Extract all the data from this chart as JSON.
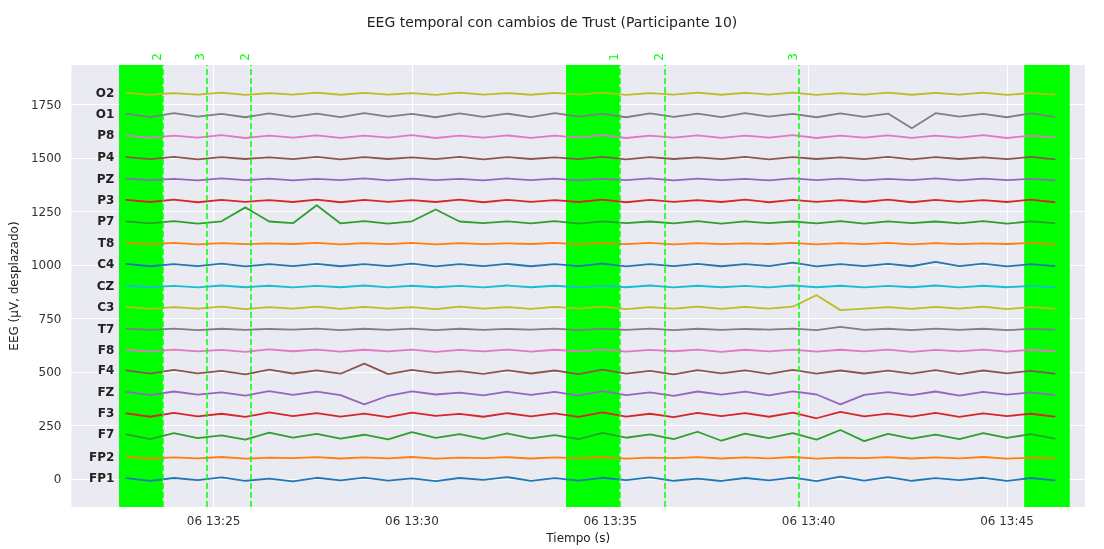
{
  "chart_data": {
    "type": "line",
    "title": "EEG temporal con cambios de Trust (Participante 10)",
    "xlabel": "Tiempo (s)",
    "ylabel": "EEG (μV, desplazado)",
    "xlim": [
      "--01-06T13:21:25",
      "--01-06T13:46:58"
    ],
    "xticks": [
      {
        "value": "--01-06T13:25",
        "label": "06 13:25"
      },
      {
        "value": "--01-06T13:30",
        "label": "06 13:30"
      },
      {
        "value": "--01-06T13:35",
        "label": "06 13:35"
      },
      {
        "value": "--01-06T13:40",
        "label": "06 13:40"
      },
      {
        "value": "--01-06T13:45",
        "label": "06 13:45"
      }
    ],
    "ylim": [
      -130,
      1935
    ],
    "yticks": [
      0,
      250,
      500,
      750,
      1000,
      1250,
      1500,
      1750
    ],
    "grid": true,
    "legend": false,
    "marker": "none",
    "line_style": "solid",
    "x": [
      "--01-06T13:22:48",
      "--01-06T13:23:24",
      "--01-06T13:24:00",
      "--01-06T13:24:36",
      "--01-06T13:25:12",
      "--01-06T13:25:48",
      "--01-06T13:26:24",
      "--01-06T13:27:00",
      "--01-06T13:27:36",
      "--01-06T13:28:12",
      "--01-06T13:28:48",
      "--01-06T13:29:24",
      "--01-06T13:30:00",
      "--01-06T13:30:36",
      "--01-06T13:31:12",
      "--01-06T13:31:48",
      "--01-06T13:32:24",
      "--01-06T13:33:00",
      "--01-06T13:33:36",
      "--01-06T13:34:12",
      "--01-06T13:34:48",
      "--01-06T13:35:24",
      "--01-06T13:36:00",
      "--01-06T13:36:36",
      "--01-06T13:37:12",
      "--01-06T13:37:48",
      "--01-06T13:38:24",
      "--01-06T13:39:00",
      "--01-06T13:39:36",
      "--01-06T13:40:12",
      "--01-06T13:40:48",
      "--01-06T13:41:24",
      "--01-06T13:42:00",
      "--01-06T13:42:36",
      "--01-06T13:43:12",
      "--01-06T13:43:48",
      "--01-06T13:44:24",
      "--01-06T13:45:00",
      "--01-06T13:45:36",
      "--01-06T13:46:12"
    ],
    "series": [
      {
        "name": "FP1",
        "color": "#1f77b4",
        "values": [
          5,
          -8,
          6,
          -4,
          9,
          -7,
          3,
          -10,
          7,
          -5,
          8,
          -6,
          4,
          -9,
          6,
          -3,
          10,
          -8,
          5,
          -6,
          7,
          -4,
          9,
          -7,
          3,
          -8,
          6,
          -5,
          8,
          -9,
          12,
          -6,
          10,
          -7,
          5,
          -4,
          7,
          -8,
          6,
          -5
        ]
      },
      {
        "name": "FP2",
        "color": "#ff7f0e",
        "values": [
          103,
          97,
          102,
          98,
          104,
          96,
          101,
          99,
          103,
          97,
          102,
          98,
          104,
          96,
          101,
          99,
          103,
          97,
          102,
          98,
          104,
          96,
          101,
          99,
          103,
          97,
          102,
          98,
          104,
          96,
          101,
          99,
          103,
          97,
          102,
          98,
          104,
          96,
          101,
          99
        ]
      },
      {
        "name": "F7",
        "color": "#2ca02c",
        "values": [
          210,
          188,
          215,
          192,
          205,
          185,
          218,
          195,
          212,
          190,
          208,
          186,
          220,
          193,
          211,
          189,
          214,
          191,
          206,
          187,
          217,
          194,
          210,
          188,
          222,
          180,
          213,
          192,
          216,
          185,
          230,
          178,
          212,
          190,
          209,
          188,
          216,
          193,
          211,
          190
        ]
      },
      {
        "name": "F3",
        "color": "#d62728",
        "values": [
          308,
          292,
          310,
          294,
          306,
          291,
          312,
          295,
          309,
          293,
          307,
          290,
          311,
          296,
          305,
          292,
          309,
          294,
          308,
          291,
          312,
          293,
          306,
          290,
          310,
          295,
          309,
          292,
          311,
          285,
          315,
          294,
          307,
          293,
          310,
          291,
          308,
          295,
          306,
          293
        ]
      },
      {
        "name": "FZ",
        "color": "#9467bd",
        "values": [
          408,
          393,
          410,
          395,
          406,
          391,
          412,
          394,
          409,
          393,
          350,
          390,
          411,
          396,
          405,
          392,
          409,
          394,
          408,
          391,
          412,
          393,
          406,
          390,
          410,
          395,
          409,
          392,
          411,
          396,
          350,
          394,
          407,
          393,
          410,
          391,
          408,
          395,
          406,
          393
        ]
      },
      {
        "name": "F4",
        "color": "#8c564b",
        "values": [
          509,
          493,
          511,
          495,
          506,
          490,
          512,
          494,
          509,
          493,
          540,
          491,
          511,
          496,
          505,
          492,
          509,
          494,
          508,
          491,
          512,
          493,
          506,
          490,
          510,
          495,
          509,
          492,
          511,
          493,
          508,
          494,
          507,
          493,
          510,
          491,
          508,
          495,
          506,
          493
        ]
      },
      {
        "name": "F8",
        "color": "#e377c2",
        "values": [
          605,
          596,
          606,
          597,
          604,
          595,
          607,
          598,
          606,
          596,
          605,
          597,
          606,
          595,
          604,
          597,
          606,
          596,
          605,
          597,
          607,
          596,
          604,
          598,
          606,
          595,
          605,
          597,
          606,
          596,
          605,
          597,
          606,
          595,
          604,
          597,
          606,
          596,
          605,
          598
        ]
      },
      {
        "name": "T7",
        "color": "#7f7f7f",
        "values": [
          703,
          698,
          704,
          697,
          703,
          698,
          702,
          699,
          704,
          697,
          703,
          698,
          704,
          697,
          703,
          698,
          702,
          699,
          704,
          697,
          703,
          698,
          704,
          697,
          703,
          698,
          702,
          699,
          704,
          697,
          712,
          698,
          703,
          697,
          704,
          698,
          703,
          697,
          702,
          699
        ]
      },
      {
        "name": "C3",
        "color": "#bcbd22",
        "values": [
          805,
          796,
          804,
          797,
          806,
          795,
          804,
          797,
          806,
          796,
          805,
          797,
          804,
          795,
          806,
          797,
          804,
          796,
          805,
          797,
          806,
          795,
          804,
          797,
          806,
          796,
          805,
          797,
          806,
          860,
          790,
          797,
          804,
          796,
          805,
          797,
          806,
          795,
          804,
          797
        ]
      },
      {
        "name": "CZ",
        "color": "#17becf",
        "values": [
          904,
          897,
          903,
          896,
          905,
          897,
          904,
          896,
          903,
          897,
          905,
          896,
          904,
          897,
          903,
          896,
          905,
          897,
          904,
          896,
          903,
          897,
          905,
          896,
          904,
          897,
          903,
          896,
          905,
          897,
          904,
          896,
          903,
          897,
          905,
          896,
          904,
          897,
          903,
          896
        ]
      },
      {
        "name": "C4",
        "color": "#1f77b4",
        "values": [
          1006,
          995,
          1005,
          996,
          1007,
          994,
          1005,
          996,
          1006,
          995,
          1005,
          996,
          1007,
          994,
          1005,
          996,
          1006,
          995,
          1005,
          996,
          1007,
          994,
          1005,
          996,
          1006,
          995,
          1005,
          996,
          1012,
          994,
          1005,
          996,
          1006,
          995,
          1015,
          996,
          1007,
          994,
          1005,
          996
        ]
      },
      {
        "name": "T8",
        "color": "#ff7f0e",
        "values": [
          1103,
          1098,
          1104,
          1097,
          1103,
          1098,
          1102,
          1099,
          1104,
          1097,
          1103,
          1098,
          1104,
          1097,
          1103,
          1098,
          1102,
          1099,
          1104,
          1097,
          1103,
          1098,
          1104,
          1097,
          1103,
          1098,
          1102,
          1099,
          1104,
          1097,
          1103,
          1098,
          1104,
          1097,
          1103,
          1098,
          1102,
          1099,
          1104,
          1097
        ]
      },
      {
        "name": "P7",
        "color": "#2ca02c",
        "values": [
          1205,
          1195,
          1206,
          1194,
          1205,
          1270,
          1204,
          1196,
          1280,
          1195,
          1206,
          1194,
          1205,
          1260,
          1204,
          1196,
          1205,
          1195,
          1206,
          1194,
          1205,
          1196,
          1204,
          1195,
          1206,
          1194,
          1205,
          1196,
          1204,
          1195,
          1206,
          1194,
          1205,
          1196,
          1204,
          1195,
          1206,
          1194,
          1205,
          1196
        ]
      },
      {
        "name": "P3",
        "color": "#d62728",
        "values": [
          1305,
          1295,
          1306,
          1294,
          1305,
          1296,
          1304,
          1295,
          1306,
          1294,
          1305,
          1296,
          1304,
          1295,
          1306,
          1294,
          1305,
          1296,
          1304,
          1295,
          1306,
          1294,
          1305,
          1296,
          1304,
          1295,
          1306,
          1294,
          1305,
          1296,
          1304,
          1295,
          1306,
          1294,
          1305,
          1296,
          1304,
          1295,
          1306,
          1294
        ]
      },
      {
        "name": "PZ",
        "color": "#9467bd",
        "values": [
          1404,
          1397,
          1403,
          1396,
          1405,
          1397,
          1404,
          1396,
          1403,
          1397,
          1405,
          1396,
          1404,
          1397,
          1403,
          1396,
          1405,
          1397,
          1404,
          1396,
          1403,
          1397,
          1405,
          1396,
          1404,
          1397,
          1403,
          1396,
          1405,
          1397,
          1404,
          1396,
          1403,
          1397,
          1405,
          1396,
          1404,
          1397,
          1403,
          1396
        ]
      },
      {
        "name": "P4",
        "color": "#8c564b",
        "values": [
          1505,
          1495,
          1506,
          1494,
          1505,
          1496,
          1504,
          1495,
          1506,
          1494,
          1505,
          1496,
          1504,
          1495,
          1506,
          1494,
          1505,
          1496,
          1504,
          1495,
          1506,
          1494,
          1505,
          1496,
          1504,
          1495,
          1506,
          1494,
          1505,
          1496,
          1504,
          1495,
          1506,
          1494,
          1505,
          1496,
          1504,
          1495,
          1506,
          1494
        ]
      },
      {
        "name": "P8",
        "color": "#e377c2",
        "values": [
          1606,
          1595,
          1605,
          1596,
          1607,
          1594,
          1605,
          1596,
          1606,
          1595,
          1605,
          1596,
          1607,
          1594,
          1605,
          1596,
          1606,
          1595,
          1605,
          1596,
          1607,
          1594,
          1605,
          1596,
          1606,
          1595,
          1605,
          1596,
          1607,
          1594,
          1605,
          1596,
          1606,
          1595,
          1605,
          1596,
          1607,
          1594,
          1605,
          1596
        ]
      },
      {
        "name": "O1",
        "color": "#7f7f7f",
        "values": [
          1708,
          1692,
          1710,
          1694,
          1707,
          1691,
          1709,
          1693,
          1708,
          1692,
          1710,
          1694,
          1707,
          1691,
          1709,
          1693,
          1708,
          1692,
          1710,
          1694,
          1707,
          1691,
          1709,
          1693,
          1708,
          1692,
          1710,
          1694,
          1707,
          1691,
          1709,
          1693,
          1708,
          1640,
          1710,
          1694,
          1707,
          1691,
          1709,
          1693
        ]
      },
      {
        "name": "O2",
        "color": "#bcbd22",
        "values": [
          1805,
          1796,
          1804,
          1797,
          1806,
          1795,
          1804,
          1797,
          1806,
          1796,
          1805,
          1797,
          1804,
          1795,
          1806,
          1797,
          1804,
          1796,
          1805,
          1797,
          1806,
          1795,
          1804,
          1797,
          1806,
          1796,
          1805,
          1797,
          1806,
          1795,
          1804,
          1797,
          1806,
          1796,
          1805,
          1797,
          1806,
          1795,
          1804,
          1797
        ]
      }
    ],
    "bands": [
      {
        "axis": "x",
        "from": "--01-06T13:22:37",
        "to": "--01-06T13:23:43",
        "color": "#00ff00"
      },
      {
        "axis": "x",
        "from": "--01-06T13:33:53",
        "to": "--01-06T13:35:14",
        "color": "#00ff00"
      },
      {
        "axis": "x",
        "from": "--01-06T13:45:26",
        "to": "--01-06T13:46:35",
        "color": "#00ff00"
      }
    ],
    "ref_lines": [
      {
        "axis": "x",
        "value": "--01-06T13:23:43",
        "label": "2",
        "color": "#00ff00",
        "line_style": "dashed"
      },
      {
        "axis": "x",
        "value": "--01-06T13:24:49",
        "label": "3",
        "color": "#00ff00",
        "line_style": "dashed"
      },
      {
        "axis": "x",
        "value": "--01-06T13:25:56",
        "label": "2",
        "color": "#00ff00",
        "line_style": "dashed"
      },
      {
        "axis": "x",
        "value": "--01-06T13:35:14",
        "label": "1",
        "color": "#00ff00",
        "line_style": "dashed"
      },
      {
        "axis": "x",
        "value": "--01-06T13:36:22",
        "label": "2",
        "color": "#00ff00",
        "line_style": "dashed"
      },
      {
        "axis": "x",
        "value": "--01-06T13:39:45",
        "label": "3",
        "color": "#00ff00",
        "line_style": "dashed"
      }
    ]
  }
}
